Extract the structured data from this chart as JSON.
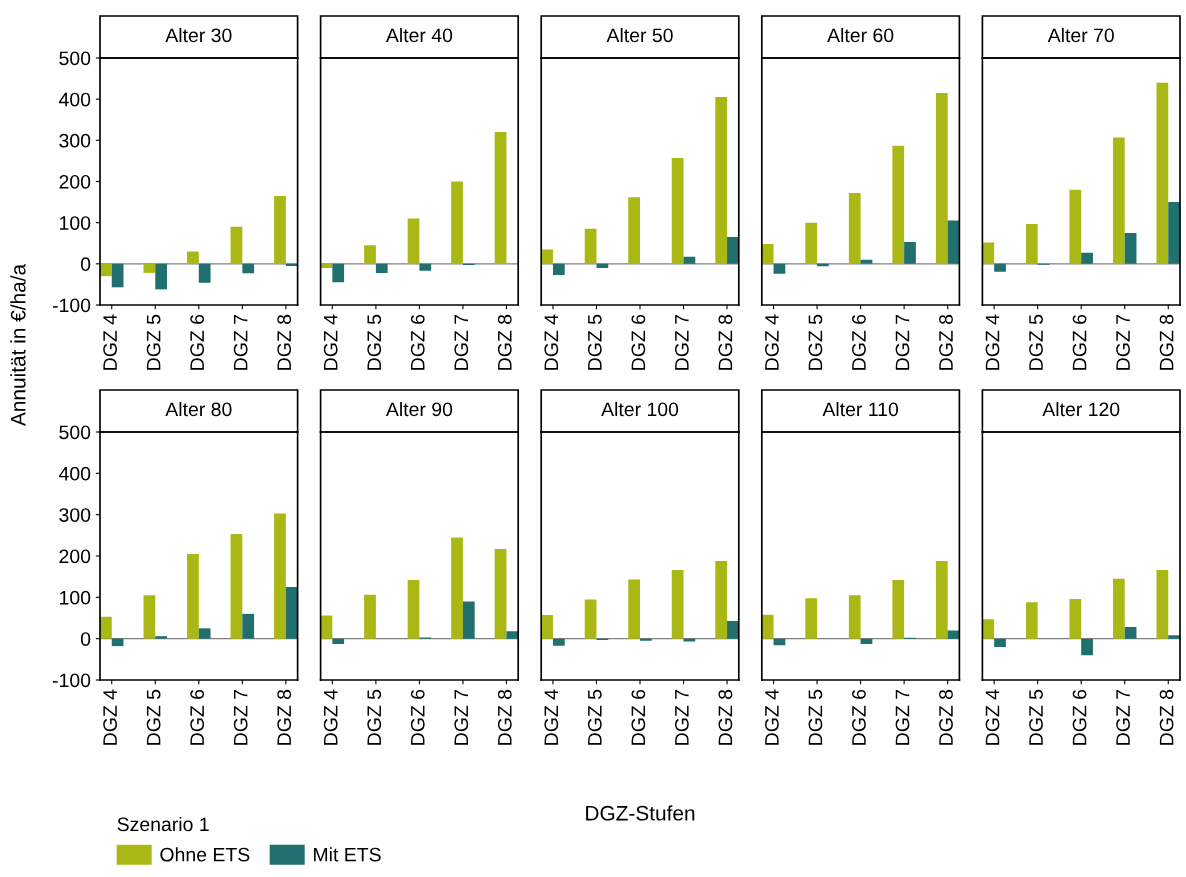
{
  "chart_data": [
    {
      "type": "bar",
      "title": "Alter 30",
      "ylabel": "Annuität in €/ha/a",
      "legend_title": "Szenario 1",
      "legend": "bottom",
      "categories": [
        "DGZ 4",
        "DGZ 5",
        "DGZ 6",
        "DGZ 7",
        "DGZ 8"
      ],
      "ylim": [
        -100,
        500
      ],
      "yticks": [
        -100,
        0,
        100,
        200,
        300,
        400,
        500
      ],
      "grid": false,
      "ref_lines": [
        {
          "axis": "y",
          "value": 0,
          "color": "#808080"
        }
      ],
      "series": [
        {
          "name": "Ohne ETS",
          "color": "#aab815",
          "values": [
            -30,
            -22,
            30,
            90,
            165
          ]
        },
        {
          "name": "Mit ETS",
          "color": "#21706f",
          "values": [
            -57,
            -62,
            -46,
            -23,
            -5
          ]
        }
      ]
    },
    {
      "type": "bar",
      "title": "Alter 40",
      "tick_labels": "x",
      "categories": [
        "DGZ 4",
        "DGZ 5",
        "DGZ 6",
        "DGZ 7",
        "DGZ 8"
      ],
      "ylim": [
        -100,
        500
      ],
      "yticks": [
        -100,
        0,
        100,
        200,
        300,
        400,
        500
      ],
      "grid": false,
      "ref_lines": [
        {
          "axis": "y",
          "value": 0,
          "color": "#808080"
        }
      ],
      "series": [
        {
          "color": "#aab815",
          "values": [
            -10,
            45,
            110,
            200,
            320
          ]
        },
        {
          "color": "#21706f",
          "values": [
            -45,
            -22,
            -17,
            -3,
            0
          ]
        }
      ]
    },
    {
      "type": "bar",
      "title": "Alter 50",
      "tick_labels": "x",
      "categories": [
        "DGZ 4",
        "DGZ 5",
        "DGZ 6",
        "DGZ 7",
        "DGZ 8"
      ],
      "ylim": [
        -100,
        500
      ],
      "yticks": [
        -100,
        0,
        100,
        200,
        300,
        400,
        500
      ],
      "grid": false,
      "ref_lines": [
        {
          "axis": "y",
          "value": 0,
          "color": "#808080"
        }
      ],
      "series": [
        {
          "color": "#aab815",
          "values": [
            35,
            85,
            162,
            257,
            405
          ]
        },
        {
          "color": "#21706f",
          "values": [
            -27,
            -10,
            0,
            17,
            65
          ]
        }
      ]
    },
    {
      "type": "bar",
      "title": "Alter 60",
      "tick_labels": "x",
      "categories": [
        "DGZ 4",
        "DGZ 5",
        "DGZ 6",
        "DGZ 7",
        "DGZ 8"
      ],
      "ylim": [
        -100,
        500
      ],
      "yticks": [
        -100,
        0,
        100,
        200,
        300,
        400,
        500
      ],
      "grid": false,
      "ref_lines": [
        {
          "axis": "y",
          "value": 0,
          "color": "#808080"
        }
      ],
      "series": [
        {
          "color": "#aab815",
          "values": [
            48,
            100,
            172,
            287,
            415
          ]
        },
        {
          "color": "#21706f",
          "values": [
            -24,
            -6,
            10,
            53,
            105
          ]
        }
      ]
    },
    {
      "type": "bar",
      "title": "Alter 70",
      "tick_labels": "x",
      "categories": [
        "DGZ 4",
        "DGZ 5",
        "DGZ 6",
        "DGZ 7",
        "DGZ 8"
      ],
      "ylim": [
        -100,
        500
      ],
      "yticks": [
        -100,
        0,
        100,
        200,
        300,
        400,
        500
      ],
      "grid": false,
      "ref_lines": [
        {
          "axis": "y",
          "value": 0,
          "color": "#808080"
        }
      ],
      "series": [
        {
          "color": "#aab815",
          "values": [
            52,
            97,
            180,
            307,
            440
          ]
        },
        {
          "color": "#21706f",
          "values": [
            -19,
            -2,
            27,
            75,
            150
          ]
        }
      ]
    },
    {
      "type": "bar",
      "title": "Alter 80",
      "categories": [
        "DGZ 4",
        "DGZ 5",
        "DGZ 6",
        "DGZ 7",
        "DGZ 8"
      ],
      "ylim": [
        -100,
        500
      ],
      "yticks": [
        -100,
        0,
        100,
        200,
        300,
        400,
        500
      ],
      "grid": false,
      "ref_lines": [
        {
          "axis": "y",
          "value": 0,
          "color": "#808080"
        }
      ],
      "series": [
        {
          "color": "#aab815",
          "values": [
            53,
            105,
            205,
            253,
            303
          ]
        },
        {
          "color": "#21706f",
          "values": [
            -18,
            6,
            25,
            60,
            125
          ]
        }
      ]
    },
    {
      "type": "bar",
      "title": "Alter 90",
      "tick_labels": "x",
      "categories": [
        "DGZ 4",
        "DGZ 5",
        "DGZ 6",
        "DGZ 7",
        "DGZ 8"
      ],
      "ylim": [
        -100,
        500
      ],
      "yticks": [
        -100,
        0,
        100,
        200,
        300,
        400,
        500
      ],
      "grid": false,
      "ref_lines": [
        {
          "axis": "y",
          "value": 0,
          "color": "#808080"
        }
      ],
      "series": [
        {
          "color": "#aab815",
          "values": [
            56,
            106,
            142,
            245,
            217
          ]
        },
        {
          "color": "#21706f",
          "values": [
            -13,
            0,
            3,
            90,
            18
          ]
        }
      ]
    },
    {
      "type": "bar",
      "title": "Alter 100",
      "xlabel": "DGZ-Stufen",
      "tick_labels": "x",
      "categories": [
        "DGZ 4",
        "DGZ 5",
        "DGZ 6",
        "DGZ 7",
        "DGZ 8"
      ],
      "ylim": [
        -100,
        500
      ],
      "yticks": [
        -100,
        0,
        100,
        200,
        300,
        400,
        500
      ],
      "grid": false,
      "ref_lines": [
        {
          "axis": "y",
          "value": 0,
          "color": "#808080"
        }
      ],
      "series": [
        {
          "color": "#aab815",
          "values": [
            57,
            95,
            143,
            166,
            188
          ]
        },
        {
          "color": "#21706f",
          "values": [
            -17,
            -3,
            -5,
            -7,
            43
          ]
        }
      ]
    },
    {
      "type": "bar",
      "title": "Alter 110",
      "tick_labels": "x",
      "categories": [
        "DGZ 4",
        "DGZ 5",
        "DGZ 6",
        "DGZ 7",
        "DGZ 8"
      ],
      "ylim": [
        -100,
        500
      ],
      "yticks": [
        -100,
        0,
        100,
        200,
        300,
        400,
        500
      ],
      "grid": false,
      "ref_lines": [
        {
          "axis": "y",
          "value": 0,
          "color": "#808080"
        }
      ],
      "series": [
        {
          "color": "#aab815",
          "values": [
            58,
            98,
            105,
            142,
            188
          ]
        },
        {
          "color": "#21706f",
          "values": [
            -16,
            0,
            -13,
            2,
            20
          ]
        }
      ]
    },
    {
      "type": "bar",
      "title": "Alter 120",
      "tick_labels": "x",
      "categories": [
        "DGZ 4",
        "DGZ 5",
        "DGZ 6",
        "DGZ 7",
        "DGZ 8"
      ],
      "ylim": [
        -100,
        500
      ],
      "yticks": [
        -100,
        0,
        100,
        200,
        300,
        400,
        500
      ],
      "grid": false,
      "ref_lines": [
        {
          "axis": "y",
          "value": 0,
          "color": "#808080"
        }
      ],
      "series": [
        {
          "color": "#aab815",
          "values": [
            47,
            88,
            96,
            145,
            166
          ]
        },
        {
          "color": "#21706f",
          "values": [
            -20,
            null,
            -40,
            28,
            8
          ]
        }
      ]
    }
  ]
}
